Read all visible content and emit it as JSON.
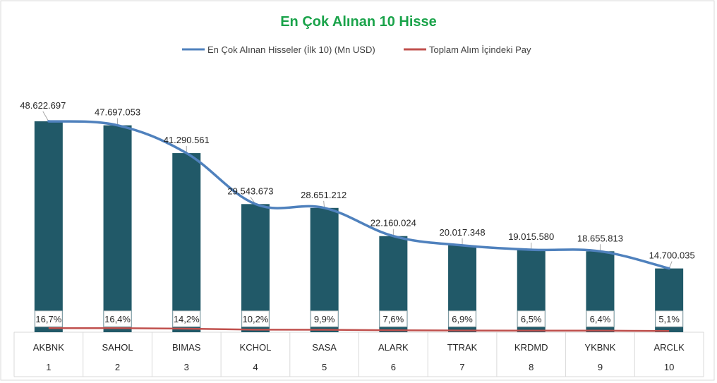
{
  "chart_data": {
    "type": "bar",
    "title": "En Çok Alınan 10 Hisse",
    "legend_position": "top",
    "legend": [
      {
        "name": "En Çok Alınan Hisseler (İlk 10) (Mn USD)",
        "color": "#4f81bd"
      },
      {
        "name": "Toplam Alım İçindeki Pay",
        "color": "#c0504d"
      }
    ],
    "categories": [
      "AKBNK",
      "SAHOL",
      "BIMAS",
      "KCHOL",
      "SASA",
      "ALARK",
      "TTRAK",
      "KRDMD",
      "YKBNK",
      "ARCLK"
    ],
    "ranks": [
      "1",
      "2",
      "3",
      "4",
      "5",
      "6",
      "7",
      "8",
      "9",
      "10"
    ],
    "values": [
      48622697,
      47697053,
      41290561,
      29543673,
      28651212,
      22160024,
      20017348,
      19015580,
      18655813,
      14700035
    ],
    "value_labels": [
      "48.622.697",
      "47.697.053",
      "41.290.561",
      "29.543.673",
      "28.651.212",
      "22.160.024",
      "20.017.348",
      "19.015.580",
      "18.655.813",
      "14.700.035"
    ],
    "share_values": [
      16.7,
      16.4,
      14.2,
      10.2,
      9.9,
      7.6,
      6.9,
      6.5,
      6.4,
      5.1
    ],
    "share_labels": [
      "16,7%",
      "16,4%",
      "14,2%",
      "10,2%",
      "9,9%",
      "7,6%",
      "6,9%",
      "6,5%",
      "6,4%",
      "5,1%"
    ],
    "ylim": [
      0,
      60000000
    ],
    "grid": false,
    "colors": {
      "bar": "#215968",
      "line": "#4f81bd",
      "share_line": "#c0504d",
      "title": "#1aa34a",
      "axis": "#d9d9d9"
    }
  }
}
